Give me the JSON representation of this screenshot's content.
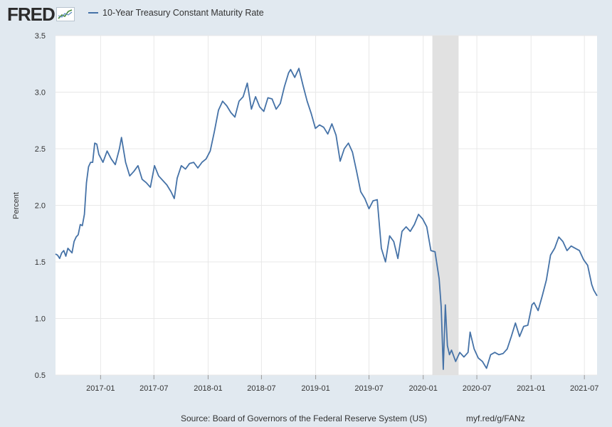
{
  "header": {
    "logo_text": "FRED",
    "legend_label": "10-Year Treasury Constant Maturity Rate"
  },
  "colors": {
    "background": "#e1e9f0",
    "plot_background": "#ffffff",
    "series": "#4572a7",
    "recession_band": "#e1e1e1",
    "grid": "#e8e8e8"
  },
  "footer": {
    "source": "Source: Board of Governors of the Federal Reserve System (US)",
    "short_url": "myf.red/g/FANz"
  },
  "chart_data": {
    "type": "line",
    "title": "",
    "xlabel": "",
    "ylabel": "Percent",
    "ylim": [
      0.5,
      3.5
    ],
    "xlim": [
      "2016-08-01",
      "2021-08-13"
    ],
    "grid": true,
    "yticks": [
      "0.5",
      "1.0",
      "1.5",
      "2.0",
      "2.5",
      "3.0",
      "3.5"
    ],
    "xticks": [
      "2017-01",
      "2017-07",
      "2018-01",
      "2018-07",
      "2019-01",
      "2019-07",
      "2020-01",
      "2020-07",
      "2021-01",
      "2021-07"
    ],
    "recessions": [
      {
        "start": "2020-02-01",
        "end": "2020-04-30"
      }
    ],
    "series": [
      {
        "name": "10-Year Treasury Constant Maturity Rate",
        "x": [
          "2016-08-01",
          "2016-08-08",
          "2016-08-15",
          "2016-08-22",
          "2016-08-29",
          "2016-09-05",
          "2016-09-12",
          "2016-09-19",
          "2016-09-26",
          "2016-10-03",
          "2016-10-10",
          "2016-10-17",
          "2016-10-24",
          "2016-10-31",
          "2016-11-07",
          "2016-11-14",
          "2016-11-21",
          "2016-11-28",
          "2016-12-05",
          "2016-12-12",
          "2016-12-19",
          "2016-12-26",
          "2017-01-09",
          "2017-01-23",
          "2017-02-06",
          "2017-02-20",
          "2017-03-06",
          "2017-03-13",
          "2017-03-27",
          "2017-04-10",
          "2017-04-24",
          "2017-05-08",
          "2017-05-22",
          "2017-06-05",
          "2017-06-19",
          "2017-07-03",
          "2017-07-17",
          "2017-07-31",
          "2017-08-14",
          "2017-08-28",
          "2017-09-08",
          "2017-09-18",
          "2017-10-02",
          "2017-10-16",
          "2017-10-30",
          "2017-11-13",
          "2017-11-27",
          "2017-12-11",
          "2017-12-25",
          "2018-01-08",
          "2018-01-22",
          "2018-02-05",
          "2018-02-19",
          "2018-03-05",
          "2018-03-19",
          "2018-04-02",
          "2018-04-16",
          "2018-04-30",
          "2018-05-14",
          "2018-05-28",
          "2018-06-11",
          "2018-06-25",
          "2018-07-09",
          "2018-07-23",
          "2018-08-06",
          "2018-08-20",
          "2018-09-03",
          "2018-09-17",
          "2018-10-01",
          "2018-10-08",
          "2018-10-22",
          "2018-11-05",
          "2018-11-19",
          "2018-12-03",
          "2018-12-17",
          "2018-12-31",
          "2019-01-14",
          "2019-01-28",
          "2019-02-11",
          "2019-02-25",
          "2019-03-11",
          "2019-03-25",
          "2019-04-08",
          "2019-04-22",
          "2019-05-06",
          "2019-05-20",
          "2019-06-03",
          "2019-06-17",
          "2019-07-01",
          "2019-07-15",
          "2019-07-29",
          "2019-08-12",
          "2019-08-26",
          "2019-09-09",
          "2019-09-23",
          "2019-10-07",
          "2019-10-21",
          "2019-11-04",
          "2019-11-18",
          "2019-12-02",
          "2019-12-16",
          "2019-12-30",
          "2020-01-13",
          "2020-01-27",
          "2020-02-10",
          "2020-02-24",
          "2020-03-02",
          "2020-03-09",
          "2020-03-16",
          "2020-03-23",
          "2020-03-30",
          "2020-04-06",
          "2020-04-20",
          "2020-05-04",
          "2020-05-18",
          "2020-06-01",
          "2020-06-08",
          "2020-06-22",
          "2020-07-06",
          "2020-07-20",
          "2020-08-03",
          "2020-08-17",
          "2020-08-31",
          "2020-09-14",
          "2020-09-28",
          "2020-10-12",
          "2020-10-26",
          "2020-11-09",
          "2020-11-23",
          "2020-12-07",
          "2020-12-21",
          "2021-01-04",
          "2021-01-11",
          "2021-01-25",
          "2021-02-08",
          "2021-02-22",
          "2021-03-08",
          "2021-03-22",
          "2021-04-05",
          "2021-04-19",
          "2021-05-03",
          "2021-05-17",
          "2021-05-31",
          "2021-06-14",
          "2021-06-28",
          "2021-07-12",
          "2021-07-26",
          "2021-08-02",
          "2021-08-13"
        ],
        "y": [
          1.57,
          1.56,
          1.53,
          1.58,
          1.6,
          1.55,
          1.62,
          1.6,
          1.58,
          1.68,
          1.72,
          1.74,
          1.83,
          1.82,
          1.92,
          2.2,
          2.34,
          2.38,
          2.38,
          2.55,
          2.54,
          2.45,
          2.38,
          2.48,
          2.41,
          2.36,
          2.5,
          2.6,
          2.38,
          2.26,
          2.3,
          2.35,
          2.23,
          2.2,
          2.16,
          2.35,
          2.26,
          2.22,
          2.18,
          2.12,
          2.06,
          2.24,
          2.35,
          2.32,
          2.37,
          2.38,
          2.33,
          2.38,
          2.41,
          2.48,
          2.65,
          2.84,
          2.92,
          2.88,
          2.82,
          2.78,
          2.92,
          2.96,
          3.08,
          2.85,
          2.96,
          2.87,
          2.83,
          2.95,
          2.94,
          2.85,
          2.9,
          3.05,
          3.17,
          3.2,
          3.13,
          3.21,
          3.06,
          2.92,
          2.81,
          2.68,
          2.71,
          2.69,
          2.63,
          2.72,
          2.62,
          2.39,
          2.5,
          2.55,
          2.47,
          2.3,
          2.12,
          2.06,
          1.97,
          2.04,
          2.05,
          1.62,
          1.5,
          1.73,
          1.68,
          1.53,
          1.77,
          1.81,
          1.77,
          1.83,
          1.92,
          1.88,
          1.81,
          1.6,
          1.59,
          1.35,
          1.1,
          0.55,
          1.12,
          0.76,
          0.68,
          0.72,
          0.62,
          0.7,
          0.66,
          0.7,
          0.88,
          0.73,
          0.65,
          0.62,
          0.56,
          0.68,
          0.7,
          0.68,
          0.69,
          0.73,
          0.84,
          0.96,
          0.84,
          0.93,
          0.94,
          1.12,
          1.14,
          1.07,
          1.2,
          1.34,
          1.56,
          1.62,
          1.72,
          1.68,
          1.6,
          1.64,
          1.62,
          1.6,
          1.52,
          1.47,
          1.3,
          1.25,
          1.2
        ]
      }
    ]
  }
}
